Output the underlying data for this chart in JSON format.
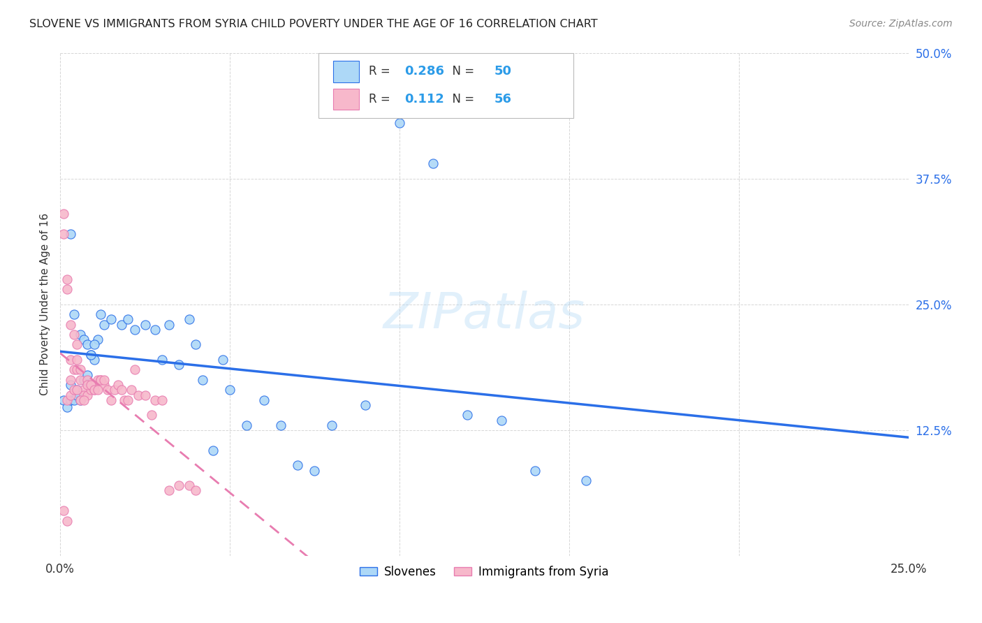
{
  "title": "SLOVENE VS IMMIGRANTS FROM SYRIA CHILD POVERTY UNDER THE AGE OF 16 CORRELATION CHART",
  "source": "Source: ZipAtlas.com",
  "ylabel": "Child Poverty Under the Age of 16",
  "xlim": [
    0.0,
    0.25
  ],
  "ylim": [
    0.0,
    0.5
  ],
  "xticks": [
    0.0,
    0.05,
    0.1,
    0.15,
    0.2,
    0.25
  ],
  "xtick_labels": [
    "0.0%",
    "",
    "",
    "",
    "",
    "25.0%"
  ],
  "ytick_labels": [
    "",
    "12.5%",
    "25.0%",
    "37.5%",
    "50.0%"
  ],
  "yticks": [
    0.0,
    0.125,
    0.25,
    0.375,
    0.5
  ],
  "legend_labels": [
    "Slovenes",
    "Immigrants from Syria"
  ],
  "r_slovene": 0.286,
  "n_slovene": 50,
  "r_syria": 0.112,
  "n_syria": 56,
  "color_slovene": "#add8f7",
  "color_syria": "#f7b8cb",
  "color_line_slovene": "#2b6fe8",
  "color_line_syria": "#e87cb0",
  "background_color": "#ffffff",
  "watermark": "ZIPatlas",
  "slovene_x": [
    0.001,
    0.002,
    0.003,
    0.003,
    0.004,
    0.005,
    0.005,
    0.006,
    0.007,
    0.008,
    0.009,
    0.01,
    0.011,
    0.013,
    0.015,
    0.018,
    0.02,
    0.022,
    0.025,
    0.028,
    0.03,
    0.032,
    0.035,
    0.038,
    0.04,
    0.042,
    0.045,
    0.048,
    0.05,
    0.055,
    0.06,
    0.065,
    0.07,
    0.075,
    0.08,
    0.09,
    0.1,
    0.11,
    0.12,
    0.13,
    0.14,
    0.155,
    0.003,
    0.004,
    0.006,
    0.007,
    0.008,
    0.009,
    0.01,
    0.012
  ],
  "slovene_y": [
    0.155,
    0.148,
    0.155,
    0.17,
    0.155,
    0.165,
    0.16,
    0.155,
    0.175,
    0.18,
    0.2,
    0.195,
    0.215,
    0.23,
    0.235,
    0.23,
    0.235,
    0.225,
    0.23,
    0.225,
    0.195,
    0.23,
    0.19,
    0.235,
    0.21,
    0.175,
    0.105,
    0.195,
    0.165,
    0.13,
    0.155,
    0.13,
    0.09,
    0.085,
    0.13,
    0.15,
    0.43,
    0.39,
    0.14,
    0.135,
    0.085,
    0.075,
    0.32,
    0.24,
    0.22,
    0.215,
    0.21,
    0.2,
    0.21,
    0.24
  ],
  "syria_x": [
    0.001,
    0.001,
    0.002,
    0.002,
    0.003,
    0.003,
    0.003,
    0.004,
    0.004,
    0.005,
    0.005,
    0.005,
    0.006,
    0.006,
    0.007,
    0.007,
    0.008,
    0.008,
    0.009,
    0.01,
    0.01,
    0.011,
    0.012,
    0.013,
    0.014,
    0.015,
    0.016,
    0.017,
    0.018,
    0.019,
    0.02,
    0.021,
    0.022,
    0.023,
    0.025,
    0.027,
    0.028,
    0.03,
    0.032,
    0.035,
    0.038,
    0.04,
    0.002,
    0.003,
    0.004,
    0.005,
    0.006,
    0.007,
    0.008,
    0.009,
    0.01,
    0.011,
    0.012,
    0.013,
    0.001,
    0.002
  ],
  "syria_y": [
    0.34,
    0.32,
    0.265,
    0.275,
    0.23,
    0.195,
    0.175,
    0.22,
    0.185,
    0.21,
    0.195,
    0.185,
    0.185,
    0.175,
    0.165,
    0.16,
    0.16,
    0.175,
    0.165,
    0.165,
    0.17,
    0.175,
    0.175,
    0.17,
    0.165,
    0.155,
    0.165,
    0.17,
    0.165,
    0.155,
    0.155,
    0.165,
    0.185,
    0.16,
    0.16,
    0.14,
    0.155,
    0.155,
    0.065,
    0.07,
    0.07,
    0.065,
    0.155,
    0.16,
    0.165,
    0.165,
    0.155,
    0.155,
    0.17,
    0.17,
    0.165,
    0.165,
    0.175,
    0.175,
    0.045,
    0.035
  ]
}
